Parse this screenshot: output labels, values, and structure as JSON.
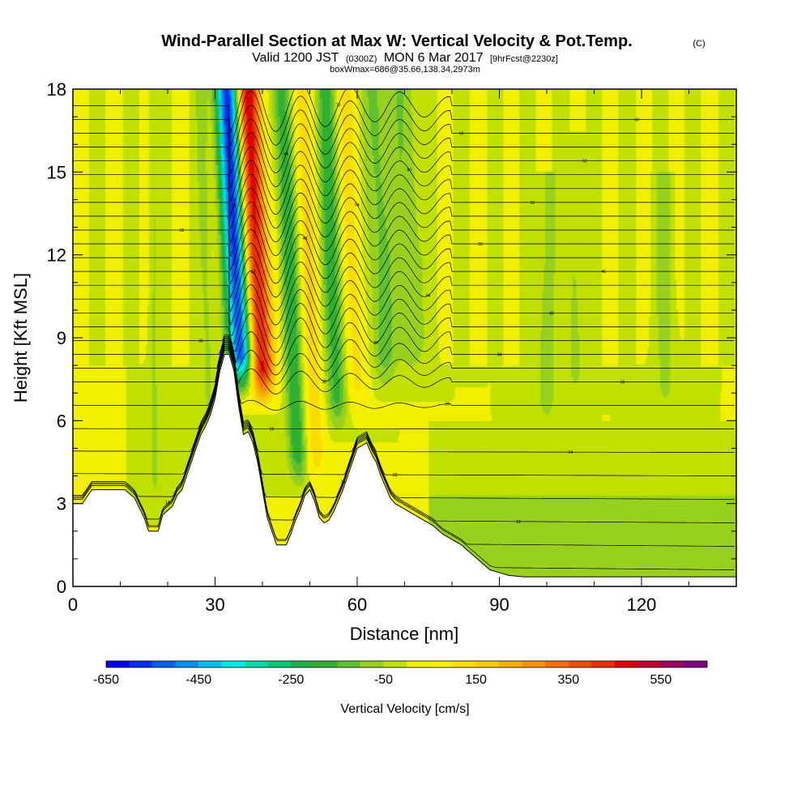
{
  "chart_data": {
    "type": "heatmap",
    "title": "Wind-Parallel Section at Max W: Vertical Velocity & Pot.Temp.",
    "title_mark": "(C)",
    "subtitle": {
      "valid": "Valid 1200 JST",
      "zulu": "(0300Z)",
      "date": "MON 6 Mar 2017",
      "forecast": "[9hrFcst@2230z]"
    },
    "info_line": "boxWmax=686@35.66,138.34,2973m",
    "xlabel": "Distance [nm]",
    "ylabel": "Height [Kft MSL]",
    "x_ticks": [
      "0",
      "30",
      "60",
      "90",
      "120"
    ],
    "y_ticks": [
      "0",
      "3",
      "6",
      "9",
      "12",
      "15",
      "18"
    ],
    "xlim": [
      0,
      140
    ],
    "ylim": [
      0,
      18
    ],
    "colorbar": {
      "title": "Vertical Velocity [cm/s]",
      "labels": [
        "-650",
        "-450",
        "-250",
        "-50",
        "150",
        "350",
        "550"
      ],
      "label_values": [
        -650,
        -450,
        -250,
        -50,
        150,
        350,
        550
      ],
      "min": -650,
      "max": 650,
      "colors": [
        "#0000f0",
        "#0030f0",
        "#0060f0",
        "#0090f0",
        "#00c0f0",
        "#00e8e8",
        "#00d8a8",
        "#00c878",
        "#20b048",
        "#30b030",
        "#60c030",
        "#98d020",
        "#c0e000",
        "#f0f000",
        "#f8f000",
        "#fbdc00",
        "#f8c800",
        "#f8b000",
        "#f89000",
        "#f87000",
        "#f05000",
        "#e83000",
        "#e00000",
        "#c00030",
        "#a00060",
        "#800080"
      ]
    },
    "terrain": [
      [
        0,
        3.0
      ],
      [
        2,
        3.0
      ],
      [
        4,
        3.5
      ],
      [
        8,
        3.5
      ],
      [
        11,
        3.5
      ],
      [
        13,
        3.2
      ],
      [
        15,
        2.5
      ],
      [
        16,
        2.0
      ],
      [
        18,
        2.0
      ],
      [
        19,
        2.6
      ],
      [
        21,
        2.9
      ],
      [
        22,
        3.3
      ],
      [
        23,
        3.5
      ],
      [
        24,
        4.0
      ],
      [
        25,
        4.5
      ],
      [
        26,
        5.0
      ],
      [
        27,
        5.5
      ],
      [
        28,
        5.8
      ],
      [
        29,
        6.2
      ],
      [
        30,
        6.8
      ],
      [
        31,
        7.8
      ],
      [
        32,
        8.4
      ],
      [
        33,
        8.4
      ],
      [
        34,
        7.8
      ],
      [
        35,
        6.5
      ],
      [
        36,
        5.5
      ],
      [
        37,
        5.6
      ],
      [
        38,
        5.2
      ],
      [
        39,
        4.5
      ],
      [
        40,
        3.5
      ],
      [
        41,
        2.5
      ],
      [
        42,
        2.0
      ],
      [
        43,
        1.5
      ],
      [
        45,
        1.5
      ],
      [
        46,
        1.9
      ],
      [
        47,
        2.4
      ],
      [
        48,
        2.8
      ],
      [
        49,
        3.3
      ],
      [
        50,
        3.5
      ],
      [
        51,
        3.1
      ],
      [
        52,
        2.5
      ],
      [
        53,
        2.3
      ],
      [
        54,
        2.4
      ],
      [
        55,
        2.7
      ],
      [
        56,
        3.1
      ],
      [
        57,
        3.5
      ],
      [
        58,
        4.0
      ],
      [
        59,
        4.5
      ],
      [
        60,
        5.0
      ],
      [
        62,
        5.2
      ],
      [
        63,
        4.8
      ],
      [
        64,
        4.5
      ],
      [
        65,
        4.0
      ],
      [
        66,
        3.6
      ],
      [
        67,
        3.2
      ],
      [
        68,
        3.0
      ],
      [
        70,
        2.8
      ],
      [
        73,
        2.5
      ],
      [
        76,
        2.2
      ],
      [
        78,
        1.9
      ],
      [
        80,
        1.7
      ],
      [
        82,
        1.5
      ],
      [
        84,
        1.2
      ],
      [
        86,
        0.9
      ],
      [
        88,
        0.6
      ],
      [
        90,
        0.5
      ],
      [
        92,
        0.4
      ],
      [
        95,
        0.35
      ],
      [
        100,
        0.35
      ],
      [
        110,
        0.35
      ],
      [
        120,
        0.35
      ],
      [
        130,
        0.35
      ],
      [
        140,
        0.35
      ]
    ],
    "vertical_velocity_features": [
      {
        "x": 34.5,
        "z_bottom": 7.5,
        "z_top": 18,
        "tilt": 1.9,
        "peak_cms": -600,
        "width_nm": 2.6
      },
      {
        "x": 38.5,
        "z_bottom": 7.0,
        "z_top": 18,
        "tilt": 1.7,
        "peak_cms": 500,
        "width_nm": 2.8
      },
      {
        "x": 45.5,
        "z_bottom": 4.0,
        "z_top": 18,
        "tilt": 1.6,
        "peak_cms": -200,
        "width_nm": 2.0
      },
      {
        "x": 49.5,
        "z_bottom": 4.0,
        "z_top": 18,
        "tilt": 1.5,
        "peak_cms": 150,
        "width_nm": 2.0
      },
      {
        "x": 54.5,
        "z_bottom": 6.0,
        "z_top": 18,
        "tilt": 1.4,
        "peak_cms": -170,
        "width_nm": 2.2
      },
      {
        "x": 59.0,
        "z_bottom": 6.5,
        "z_top": 18,
        "tilt": 1.3,
        "peak_cms": 120,
        "width_nm": 2.2
      },
      {
        "x": 65.0,
        "z_bottom": 7.5,
        "z_top": 18,
        "tilt": 1.2,
        "peak_cms": -130,
        "width_nm": 2.5
      },
      {
        "x": 71.0,
        "z_bottom": 8.0,
        "z_top": 18,
        "tilt": 1.0,
        "peak_cms": -100,
        "width_nm": 2.8
      },
      {
        "x": 28.0,
        "z_bottom": 5.0,
        "z_top": 18,
        "tilt": 0.8,
        "peak_cms": -60,
        "width_nm": 1.2
      },
      {
        "x": 17.0,
        "z_bottom": 3.0,
        "z_top": 18,
        "tilt": 0.2,
        "peak_cms": -60,
        "width_nm": 1.0
      },
      {
        "x": 100.0,
        "z_bottom": 6.0,
        "z_top": 14,
        "tilt": 0.0,
        "peak_cms": -80,
        "width_nm": 2.0
      },
      {
        "x": 106.0,
        "z_bottom": 7.0,
        "z_top": 15.5,
        "tilt": 0.0,
        "peak_cms": -70,
        "width_nm": 1.6
      },
      {
        "x": 125.0,
        "z_bottom": 6.5,
        "z_top": 14,
        "tilt": 0.0,
        "peak_cms": -70,
        "width_nm": 2.0
      }
    ],
    "potential_temperature_contours": {
      "levels": [
        14,
        16,
        18,
        20,
        22,
        24,
        26,
        28,
        30,
        32,
        34,
        36,
        38,
        40,
        42,
        44,
        46,
        48,
        50,
        52,
        54,
        56,
        58,
        60,
        62,
        64,
        66,
        68,
        70
      ],
      "label_format": "two-digit"
    }
  }
}
